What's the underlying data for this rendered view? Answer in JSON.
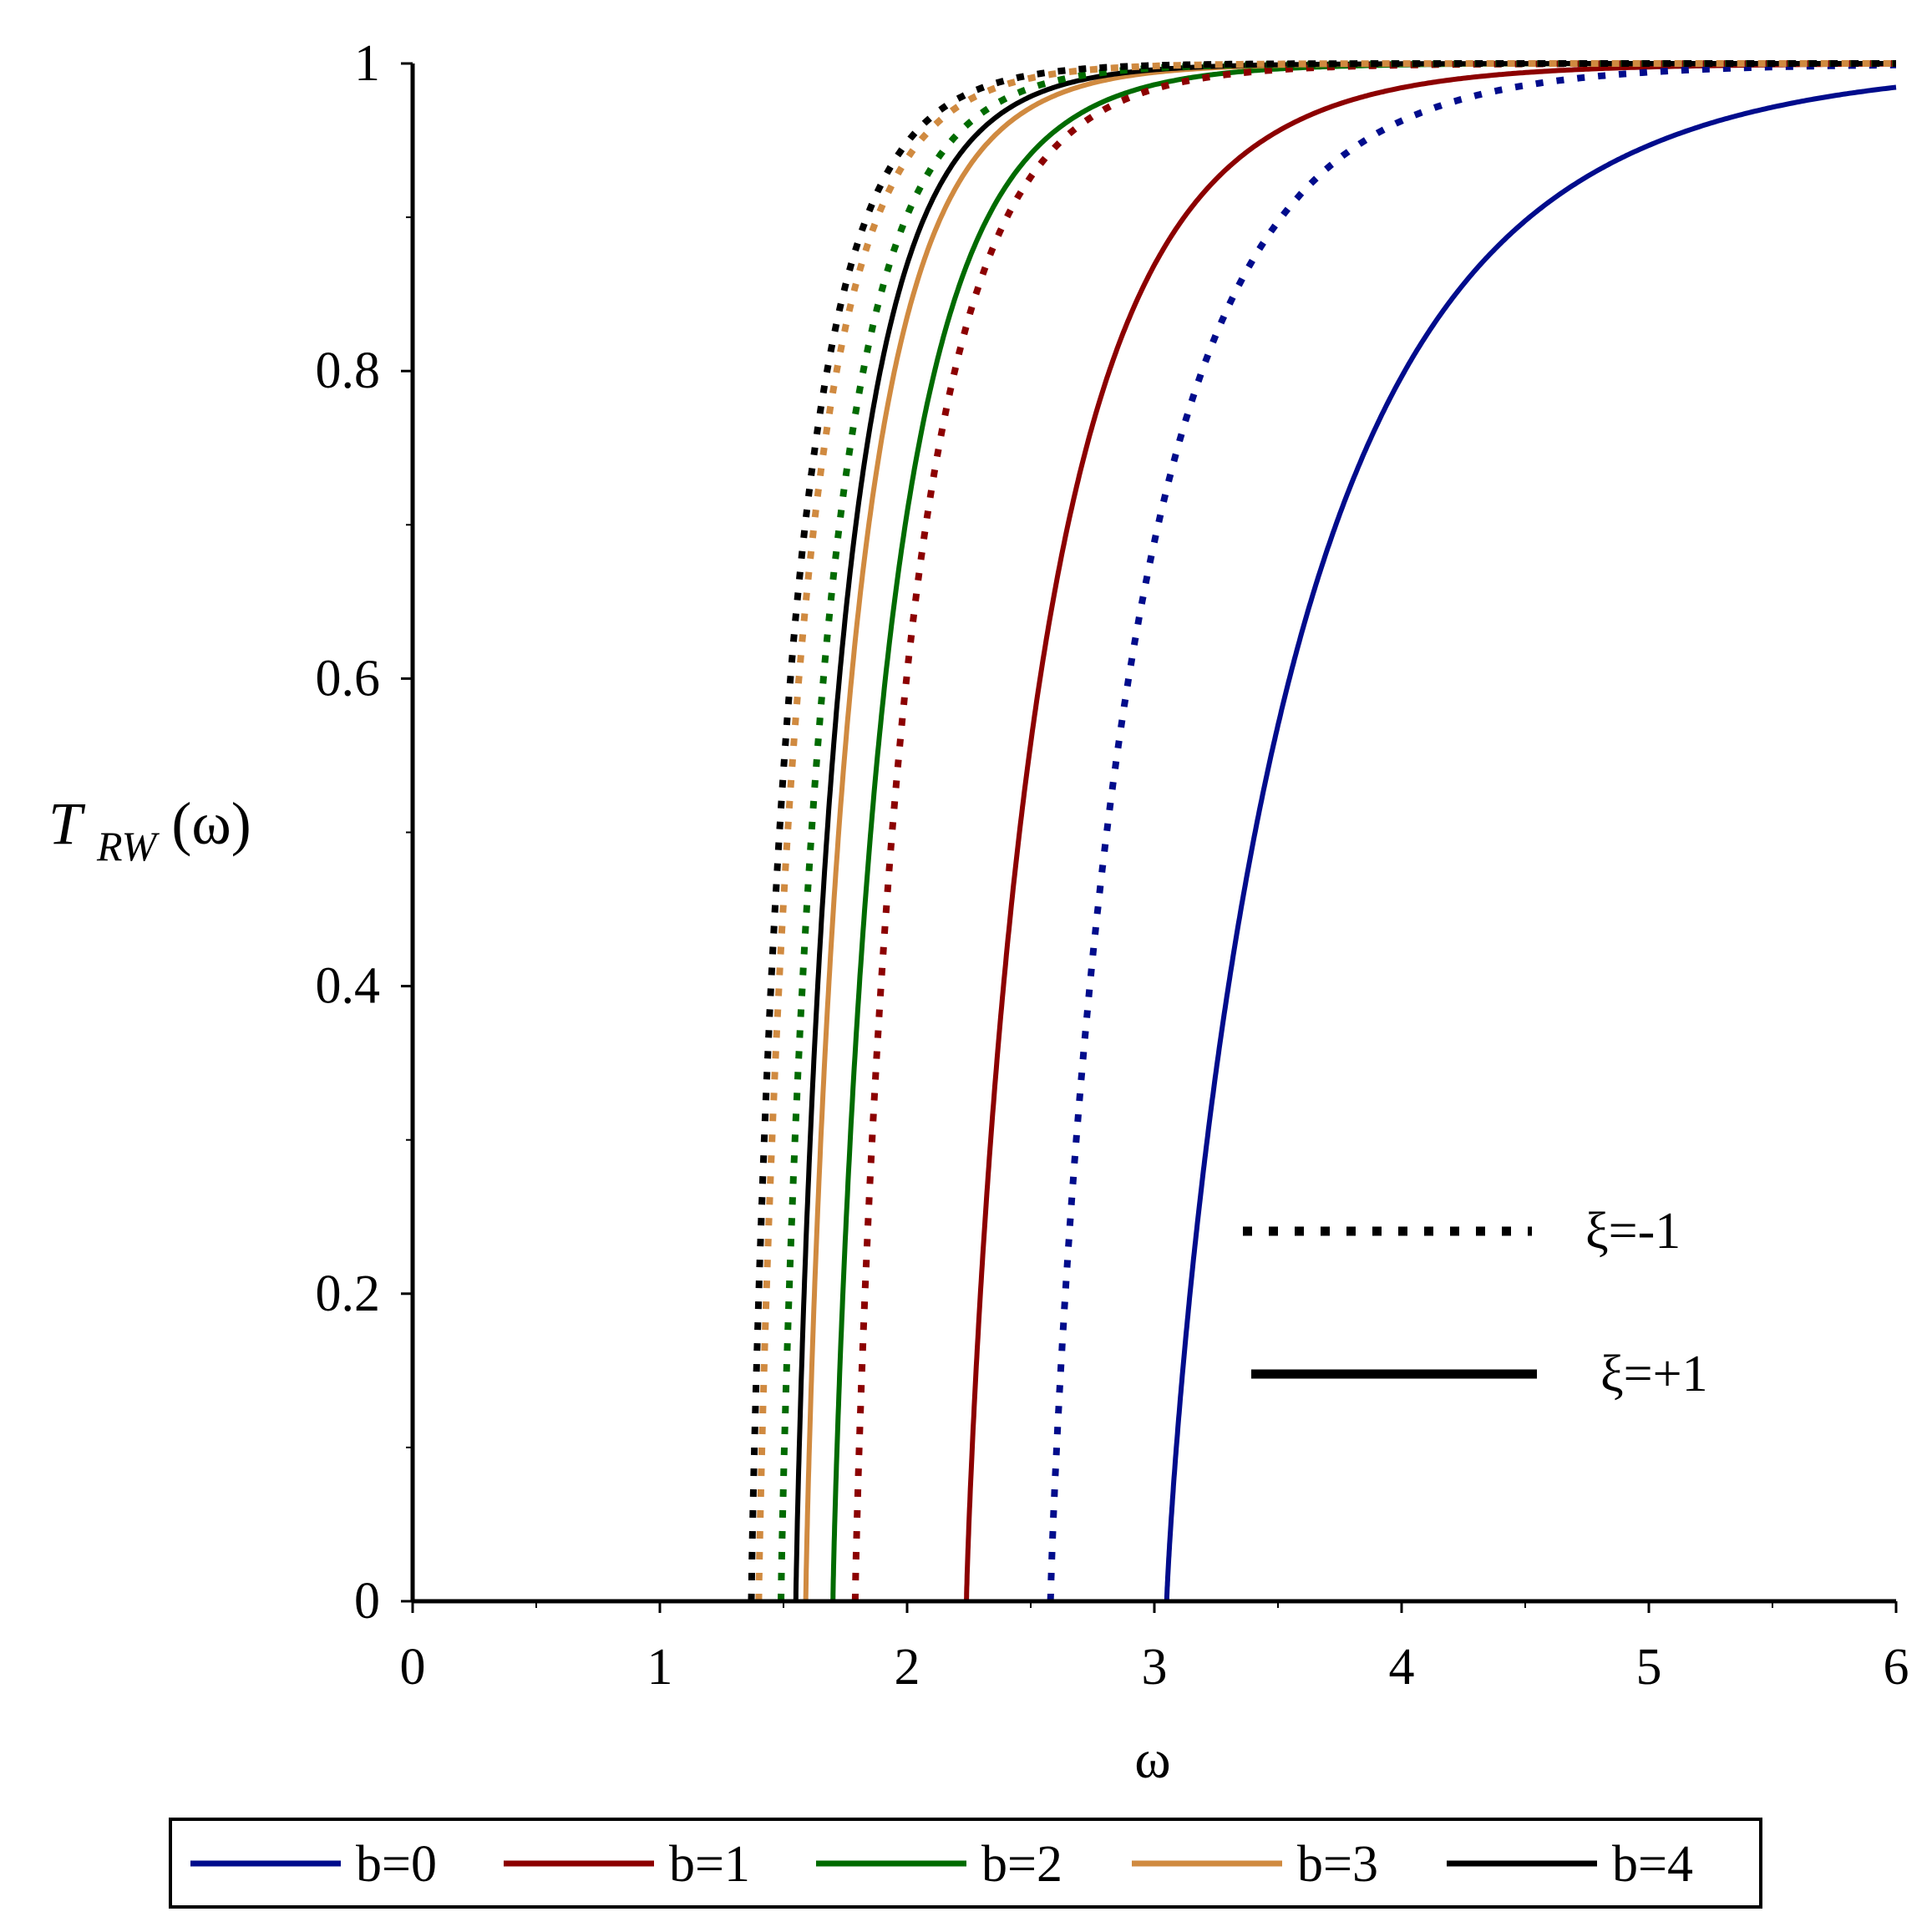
{
  "chart_data": {
    "type": "line",
    "xlabel": "ω",
    "ylabel": {
      "main": "T",
      "sub": "RW",
      "suffix": "(ω)"
    },
    "xlim": [
      0,
      6
    ],
    "ylim": [
      0,
      1
    ],
    "xticks": [
      "0",
      "1",
      "2",
      "3",
      "4",
      "5",
      "6"
    ],
    "yticks": [
      "0",
      "0.2",
      "0.4",
      "0.6",
      "0.8",
      "1"
    ],
    "grid": false,
    "style_legend": [
      {
        "label": "ξ=-1",
        "dash": "dotted"
      },
      {
        "label": "ξ=+1",
        "dash": "solid"
      }
    ],
    "color_legend_position": "bottom",
    "series": [
      {
        "name": "b=0",
        "color": "#000c8c",
        "xi": "+1",
        "threshold": 3.05,
        "scale": 0.55
      },
      {
        "name": "b=1",
        "color": "#8c0000",
        "xi": "+1",
        "threshold": 2.24,
        "scale": 0.33
      },
      {
        "name": "b=2",
        "color": "#006b00",
        "xi": "+1",
        "threshold": 1.7,
        "scale": 0.235
      },
      {
        "name": "b=3",
        "color": "#d08a40",
        "xi": "+1",
        "threshold": 1.59,
        "scale": 0.205
      },
      {
        "name": "b=4",
        "color": "#000000",
        "xi": "+1",
        "threshold": 1.55,
        "scale": 0.195
      },
      {
        "name": "b=0",
        "color": "#000c8c",
        "xi": "-1",
        "threshold": 2.58,
        "scale": 0.35
      },
      {
        "name": "b=1",
        "color": "#8c0000",
        "xi": "-1",
        "threshold": 1.79,
        "scale": 0.23
      },
      {
        "name": "b=2",
        "color": "#006b00",
        "xi": "-1",
        "threshold": 1.49,
        "scale": 0.19
      },
      {
        "name": "b=3",
        "color": "#d08a40",
        "xi": "-1",
        "threshold": 1.4,
        "scale": 0.18
      },
      {
        "name": "b=4",
        "color": "#000000",
        "xi": "-1",
        "threshold": 1.37,
        "scale": 0.175
      }
    ],
    "color_legend": [
      {
        "label": "b=0",
        "color": "#000c8c"
      },
      {
        "label": "b=1",
        "color": "#8c0000"
      },
      {
        "label": "b=2",
        "color": "#006b00"
      },
      {
        "label": "b=3",
        "color": "#d08a40"
      },
      {
        "label": "b=4",
        "color": "#000000"
      }
    ]
  }
}
